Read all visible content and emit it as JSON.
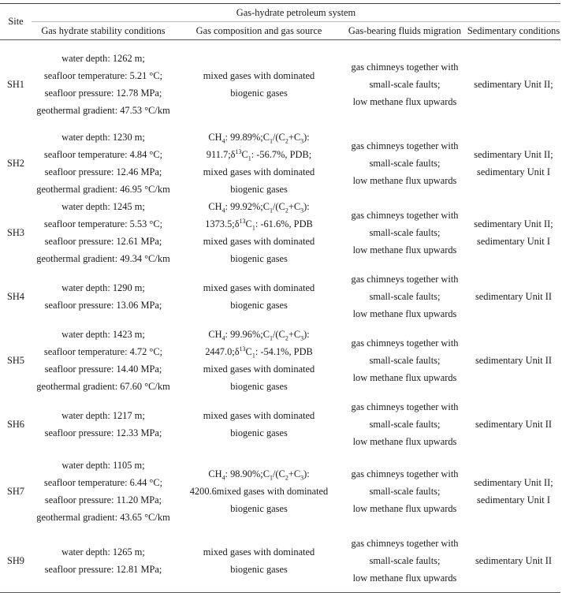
{
  "table": {
    "headers": {
      "site": "Site",
      "group": "Gas-hydrate petroleum system",
      "columns": [
        "Gas hydrate stability conditions",
        "Gas composition and gas source",
        "Gas-bearing fluids migration",
        "Sedimentary conditions"
      ]
    },
    "rows": [
      {
        "site": "SH1",
        "stability": [
          "water depth: 1262 m;",
          "seafloor temperature: 5.21 °C;",
          "seafloor pressure: 12.78 MPa;",
          "geothermal gradient: 47.53 °C/km"
        ],
        "composition": [
          "mixed gases with dominated",
          "biogenic gases"
        ],
        "migration": [
          "gas chimneys together with",
          "small-scale faults;",
          "low methane flux upwards"
        ],
        "sedimentary": [
          "sedimentary Unit II;"
        ]
      },
      {
        "site": "SH2",
        "stability": [
          "water depth: 1230 m;",
          "seafloor temperature: 4.84 °C;",
          "seafloor pressure: 12.46 MPa;",
          "geothermal gradient: 46.95 °C/km"
        ],
        "composition": [
          "CH4: 99.89%;C1/(C2+C3):",
          "911.7;δ13C1: -56.7%, PDB;",
          "mixed gases with dominated",
          "biogenic gases"
        ],
        "migration": [
          "gas chimneys together with",
          "small-scale faults;",
          "low methane flux upwards"
        ],
        "sedimentary": [
          "sedimentary Unit II;",
          "sedimentary Unit I"
        ]
      },
      {
        "site": "SH3",
        "stability": [
          "water depth: 1245 m;",
          "seafloor temperature: 5.53 °C;",
          "seafloor pressure: 12.61 MPa;",
          "geothermal gradient: 49.34 °C/km"
        ],
        "composition": [
          "CH4: 99.92%;C1/(C2+C3):",
          "1373.5;δ13C1: -61.6%, PDB",
          "mixed gases with dominated",
          "biogenic gases"
        ],
        "migration": [
          "gas chimneys together with",
          "small-scale faults;",
          "low methane flux upwards"
        ],
        "sedimentary": [
          "sedimentary Unit II;",
          "sedimentary Unit I"
        ]
      },
      {
        "site": "SH4",
        "stability": [
          "water depth: 1290 m;",
          "seafloor pressure: 13.06 MPa;"
        ],
        "composition": [
          "mixed gases with dominated",
          "biogenic gases"
        ],
        "migration": [
          "gas chimneys together with",
          "small-scale faults;",
          "low methane flux upwards"
        ],
        "sedimentary": [
          "sedimentary Unit II"
        ]
      },
      {
        "site": "SH5",
        "stability": [
          "water depth: 1423 m;",
          "seafloor temperature: 4.72 °C;",
          "seafloor pressure: 14.40 MPa;",
          "geothermal gradient: 67.60 °C/km"
        ],
        "composition": [
          "CH4: 99.96%;C1/(C2+C3):",
          "2447.0;δ13C1: -54.1%, PDB",
          "mixed gases with dominated",
          "biogenic gases"
        ],
        "migration": [
          "gas chimneys together with",
          "small-scale faults;",
          "low methane flux upwards"
        ],
        "sedimentary": [
          "sedimentary Unit II"
        ]
      },
      {
        "site": "SH6",
        "stability": [
          "water depth: 1217 m;",
          "seafloor pressure: 12.33 MPa;"
        ],
        "composition": [
          "mixed gases with dominated",
          "biogenic gases"
        ],
        "migration": [
          "gas chimneys together with",
          "small-scale faults;",
          "low methane flux upwards"
        ],
        "sedimentary": [
          "sedimentary Unit II"
        ]
      },
      {
        "site": "SH7",
        "stability": [
          "water depth: 1105 m;",
          "seafloor temperature: 6.44 °C;",
          "seafloor pressure: 11.20 MPa;",
          "geothermal gradient: 43.65 °C/km"
        ],
        "composition": [
          "CH4: 98.90%;C1/(C2+C3):",
          "4200.6mixed gases with dominated",
          "biogenic gases"
        ],
        "migration": [
          "gas chimneys together with",
          "small-scale faults;",
          "low methane flux upwards"
        ],
        "sedimentary": [
          "sedimentary Unit II;",
          "sedimentary Unit I"
        ]
      },
      {
        "site": "SH9",
        "stability": [
          "water depth: 1265 m;",
          "seafloor pressure: 12.81 MPa;"
        ],
        "composition": [
          "mixed gases with dominated",
          "biogenic gases"
        ],
        "migration": [
          "gas chimneys together with",
          "small-scale faults;",
          "low methane flux upwards"
        ],
        "sedimentary": [
          "sedimentary Unit II"
        ]
      }
    ]
  }
}
